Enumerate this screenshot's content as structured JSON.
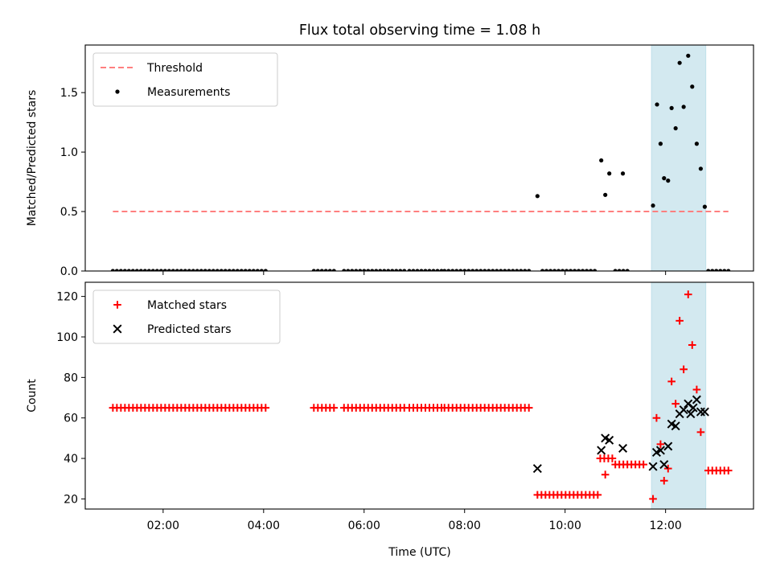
{
  "chart_data": {
    "title": "Flux total observing time = 1.08 h",
    "xlabel": "Time (UTC)",
    "x_unit": "hours UTC",
    "xlim": [
      0.45,
      13.75
    ],
    "x_ticks": [
      {
        "value": 2,
        "label": "02:00"
      },
      {
        "value": 4,
        "label": "04:00"
      },
      {
        "value": 6,
        "label": "06:00"
      },
      {
        "value": 8,
        "label": "08:00"
      },
      {
        "value": 10,
        "label": "10:00"
      },
      {
        "value": 12,
        "label": "12:00"
      }
    ],
    "highlight": {
      "from": 11.72,
      "to": 12.8,
      "color": "#d3e9f0",
      "edge": "#bfe0ea"
    },
    "panels": [
      {
        "type": "scatter",
        "ylabel": "Matched/Predicted stars",
        "ylim": [
          0,
          1.9
        ],
        "y_ticks": [
          {
            "value": 0,
            "label": "0.0"
          },
          {
            "value": 0.5,
            "label": "0.5"
          },
          {
            "value": 1.0,
            "label": "1.0"
          },
          {
            "value": 1.5,
            "label": "1.5"
          }
        ],
        "legend": {
          "position": "top-left",
          "entries": [
            {
              "label": "Threshold",
              "marker": "dashed-line",
              "color": "#ff7f7f"
            },
            {
              "label": "Measurements",
              "marker": "dot",
              "color": "#000000"
            }
          ]
        },
        "threshold": {
          "value": 0.5,
          "x_range": [
            1.0,
            13.25
          ],
          "color": "#ff7f7f"
        },
        "series": [
          {
            "name": "Measurements",
            "marker": "dot",
            "color": "#000000",
            "zero_segments": [
              [
                1.0,
                4.1
              ],
              [
                5.0,
                5.4
              ],
              [
                5.6,
                6.8
              ],
              [
                6.9,
                7.55
              ],
              [
                7.6,
                9.3
              ],
              [
                9.55,
                10.65
              ],
              [
                11.0,
                11.3
              ],
              [
                12.85,
                13.25
              ]
            ],
            "zero_step": 0.08,
            "points": [
              {
                "x": 9.45,
                "y": 0.63
              },
              {
                "x": 10.72,
                "y": 0.93
              },
              {
                "x": 10.8,
                "y": 0.64
              },
              {
                "x": 10.88,
                "y": 0.82
              },
              {
                "x": 11.15,
                "y": 0.82
              },
              {
                "x": 11.75,
                "y": 0.55
              },
              {
                "x": 11.83,
                "y": 1.4
              },
              {
                "x": 11.9,
                "y": 1.07
              },
              {
                "x": 11.97,
                "y": 0.78
              },
              {
                "x": 12.05,
                "y": 0.76
              },
              {
                "x": 12.12,
                "y": 1.37
              },
              {
                "x": 12.2,
                "y": 1.2
              },
              {
                "x": 12.28,
                "y": 1.75
              },
              {
                "x": 12.36,
                "y": 1.38
              },
              {
                "x": 12.45,
                "y": 1.81
              },
              {
                "x": 12.53,
                "y": 1.55
              },
              {
                "x": 12.62,
                "y": 1.07
              },
              {
                "x": 12.7,
                "y": 0.86
              },
              {
                "x": 12.78,
                "y": 0.54
              }
            ]
          }
        ]
      },
      {
        "type": "scatter",
        "ylabel": "Count",
        "ylim": [
          15,
          127
        ],
        "y_ticks": [
          {
            "value": 20,
            "label": "20"
          },
          {
            "value": 40,
            "label": "40"
          },
          {
            "value": 60,
            "label": "60"
          },
          {
            "value": 80,
            "label": "80"
          },
          {
            "value": 100,
            "label": "100"
          },
          {
            "value": 120,
            "label": "120"
          }
        ],
        "legend": {
          "position": "top-left",
          "entries": [
            {
              "label": "Matched stars",
              "marker": "plus",
              "color": "#ff0000"
            },
            {
              "label": "Predicted stars",
              "marker": "cross",
              "color": "#000000"
            }
          ]
        },
        "series": [
          {
            "name": "Matched stars",
            "marker": "plus",
            "color": "#ff0000",
            "runs": [
              {
                "from": 1.0,
                "to": 4.1,
                "y": 65
              },
              {
                "from": 5.0,
                "to": 5.4,
                "y": 65
              },
              {
                "from": 5.6,
                "to": 6.8,
                "y": 65
              },
              {
                "from": 6.9,
                "to": 7.55,
                "y": 65
              },
              {
                "from": 7.6,
                "to": 9.3,
                "y": 65
              },
              {
                "from": 9.45,
                "to": 10.65,
                "y": 22
              },
              {
                "from": 10.7,
                "to": 10.95,
                "y": 40
              },
              {
                "from": 11.0,
                "to": 11.6,
                "y": 37
              },
              {
                "from": 12.85,
                "to": 13.25,
                "y": 34
              }
            ],
            "run_step": 0.08,
            "points": [
              {
                "x": 10.8,
                "y": 32
              },
              {
                "x": 11.75,
                "y": 20
              },
              {
                "x": 11.82,
                "y": 60
              },
              {
                "x": 11.9,
                "y": 47
              },
              {
                "x": 11.97,
                "y": 29
              },
              {
                "x": 12.05,
                "y": 35
              },
              {
                "x": 12.12,
                "y": 78
              },
              {
                "x": 12.2,
                "y": 67
              },
              {
                "x": 12.28,
                "y": 108
              },
              {
                "x": 12.36,
                "y": 84
              },
              {
                "x": 12.45,
                "y": 121
              },
              {
                "x": 12.53,
                "y": 96
              },
              {
                "x": 12.62,
                "y": 74
              },
              {
                "x": 12.7,
                "y": 53
              }
            ]
          },
          {
            "name": "Predicted stars",
            "marker": "cross",
            "color": "#000000",
            "points": [
              {
                "x": 9.45,
                "y": 35
              },
              {
                "x": 10.72,
                "y": 44
              },
              {
                "x": 10.8,
                "y": 50
              },
              {
                "x": 10.88,
                "y": 49
              },
              {
                "x": 11.15,
                "y": 45
              },
              {
                "x": 11.75,
                "y": 36
              },
              {
                "x": 11.82,
                "y": 43
              },
              {
                "x": 11.9,
                "y": 44
              },
              {
                "x": 11.97,
                "y": 37
              },
              {
                "x": 12.05,
                "y": 46
              },
              {
                "x": 12.12,
                "y": 57
              },
              {
                "x": 12.2,
                "y": 56
              },
              {
                "x": 12.28,
                "y": 62
              },
              {
                "x": 12.36,
                "y": 64
              },
              {
                "x": 12.45,
                "y": 67
              },
              {
                "x": 12.5,
                "y": 62
              },
              {
                "x": 12.55,
                "y": 65
              },
              {
                "x": 12.62,
                "y": 69
              },
              {
                "x": 12.7,
                "y": 63
              },
              {
                "x": 12.78,
                "y": 63
              }
            ]
          }
        ]
      }
    ]
  }
}
